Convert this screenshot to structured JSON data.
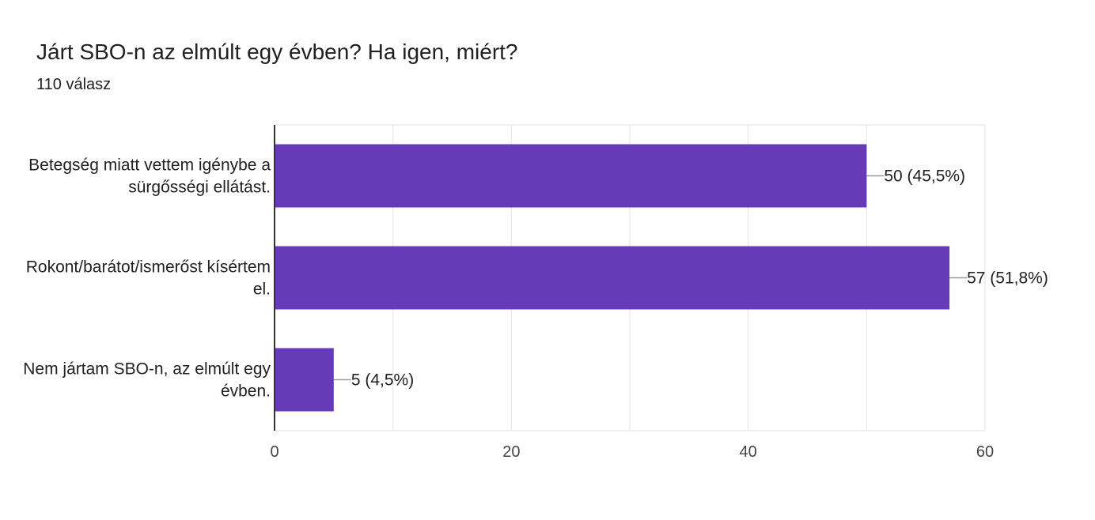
{
  "chart_data": {
    "type": "bar",
    "orientation": "horizontal",
    "title": "Járt SBO-n az elmúlt egy évben? Ha igen, miért?",
    "subtitle": "110 válasz",
    "categories": [
      [
        "Betegség miatt vettem igénybe a",
        "sürgősségi ellátást."
      ],
      [
        "Rokont/barátot/ismerőst kísértem",
        "el."
      ],
      [
        "Nem jártam SBO-n, az elmúlt egy",
        "évben."
      ]
    ],
    "values": [
      50,
      57,
      5
    ],
    "data_labels": [
      "50 (45,5%)",
      "57 (51,8%)",
      "5 (4,5%)"
    ],
    "xlim": [
      0,
      60
    ],
    "x_ticks": [
      "0",
      "20",
      "40",
      "60"
    ],
    "grid": true,
    "colors": {
      "bar": "#673ab7",
      "grid": "#ebebeb",
      "axis": "#333333",
      "leader": "#999999"
    }
  }
}
